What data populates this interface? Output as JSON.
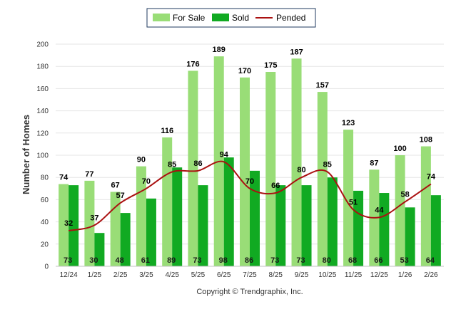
{
  "chart_data": {
    "type": "bar",
    "title": "",
    "xlabel": "",
    "ylabel": "Number of Homes",
    "ylim": [
      0,
      200
    ],
    "yticks": [
      0,
      20,
      40,
      60,
      80,
      100,
      120,
      140,
      160,
      180,
      200
    ],
    "categories": [
      "12/24",
      "1/25",
      "2/25",
      "3/25",
      "4/25",
      "5/25",
      "6/25",
      "7/25",
      "8/25",
      "9/25",
      "10/25",
      "11/25",
      "12/25",
      "1/26",
      "2/26"
    ],
    "series": [
      {
        "name": "For Sale",
        "kind": "bar",
        "color": "#99dd77",
        "values": [
          74,
          77,
          67,
          90,
          116,
          176,
          189,
          170,
          175,
          187,
          157,
          123,
          87,
          100,
          108
        ]
      },
      {
        "name": "Sold",
        "kind": "bar",
        "color": "#11aa22",
        "values": [
          73,
          30,
          48,
          61,
          89,
          73,
          98,
          86,
          73,
          73,
          80,
          68,
          66,
          53,
          64
        ]
      },
      {
        "name": "Pended",
        "kind": "line",
        "color": "#aa1111",
        "values": [
          32,
          37,
          57,
          70,
          85,
          86,
          94,
          70,
          66,
          80,
          85,
          51,
          44,
          58,
          74
        ]
      }
    ],
    "legend_position": "top-center",
    "copyright": "Copyright © Trendgraphix, Inc."
  }
}
